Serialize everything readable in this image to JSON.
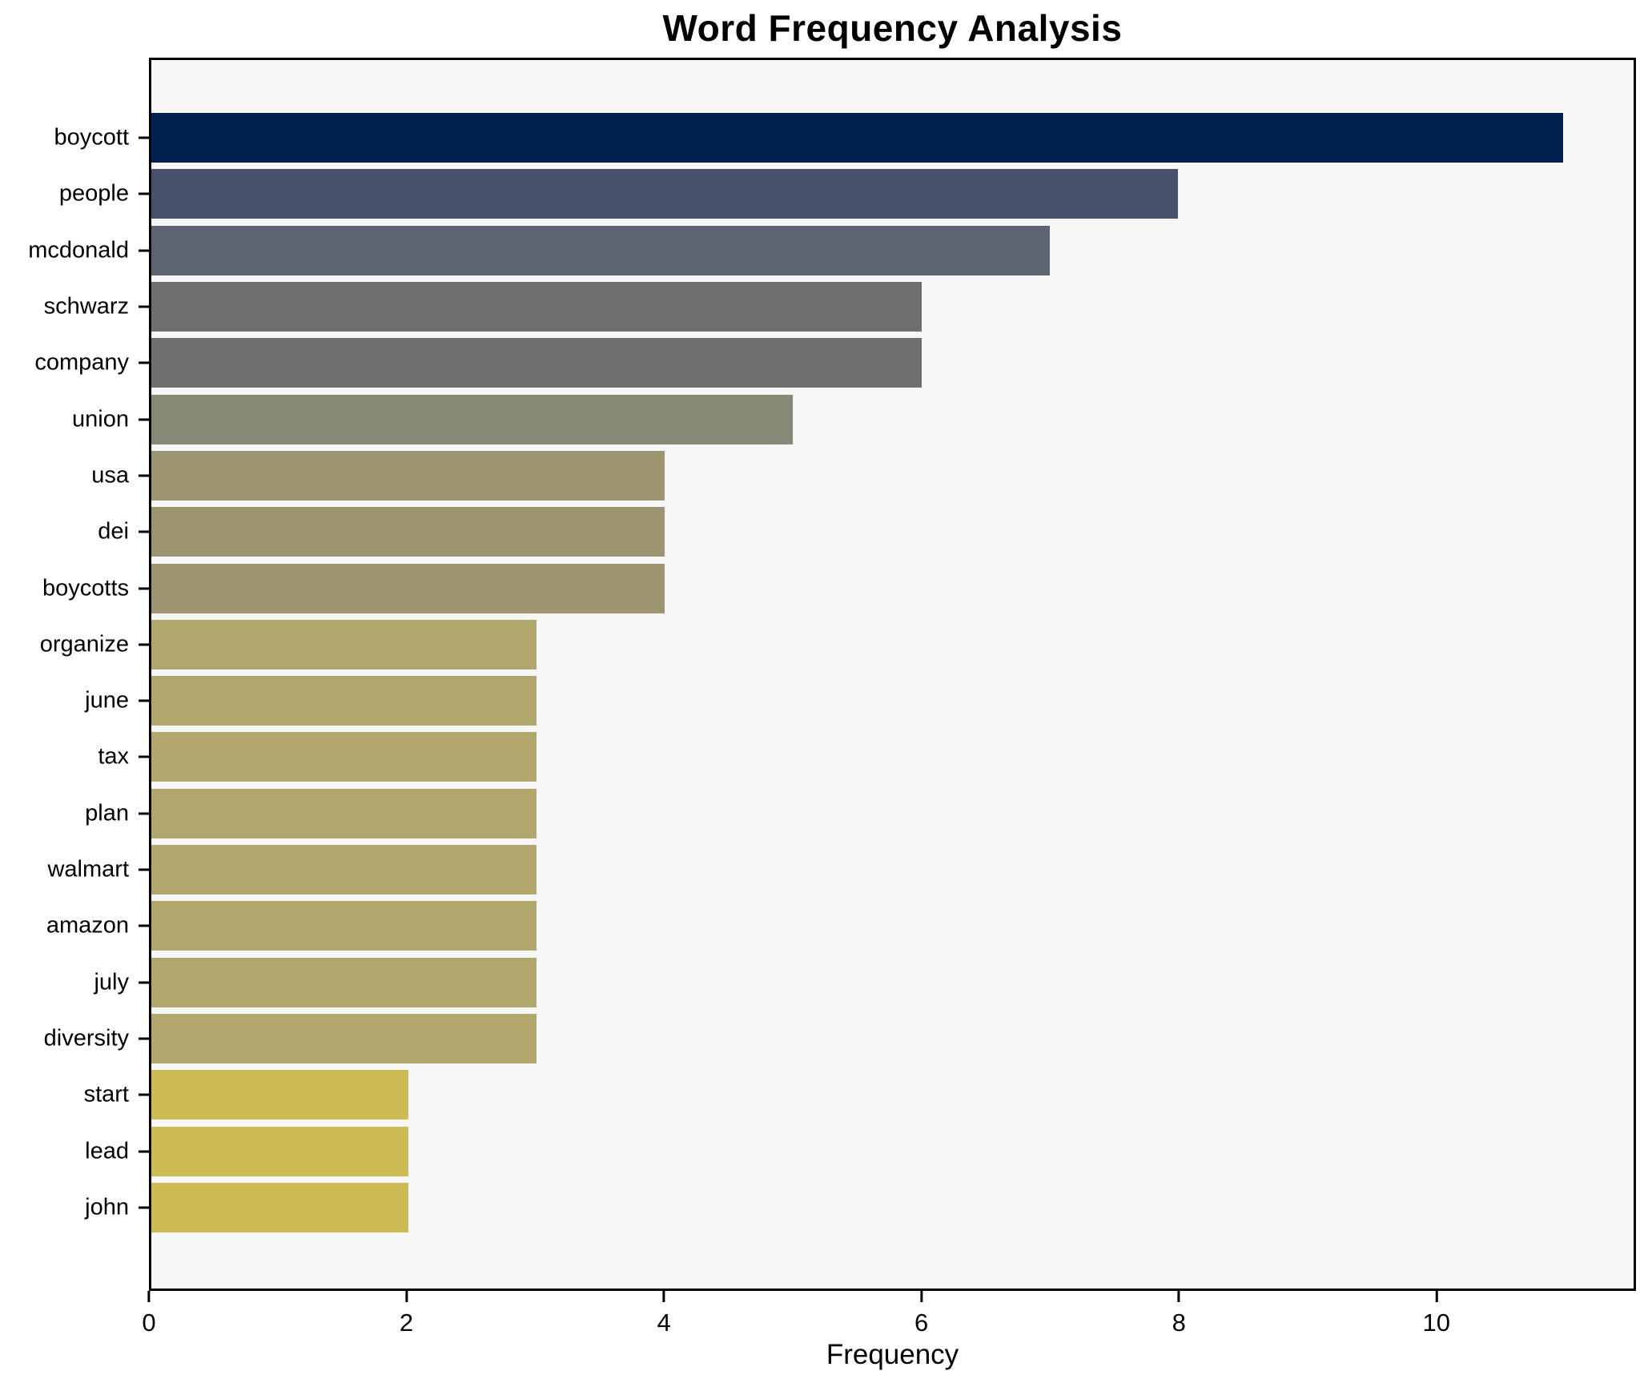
{
  "title": "Word Frequency Analysis",
  "xlabel": "Frequency",
  "colors": {
    "plot_background": "#f7f7f8",
    "figure_background": "#ffffff",
    "axis": "#000000"
  },
  "chart_data": {
    "type": "bar",
    "orientation": "horizontal",
    "title": "Word Frequency Analysis",
    "xlabel": "Frequency",
    "ylabel": "",
    "categories": [
      "boycott",
      "people",
      "mcdonald",
      "schwarz",
      "company",
      "union",
      "usa",
      "dei",
      "boycotts",
      "organize",
      "june",
      "tax",
      "plan",
      "walmart",
      "amazon",
      "july",
      "diversity",
      "start",
      "lead",
      "john"
    ],
    "values": [
      11,
      8,
      7,
      6,
      6,
      5,
      4,
      4,
      4,
      3,
      3,
      3,
      3,
      3,
      3,
      3,
      3,
      2,
      2,
      2
    ],
    "bar_colors": [
      "#03214e",
      "#48516b",
      "#5d6370",
      "#6e6f70",
      "#6e6f70",
      "#878876",
      "#9d9571",
      "#9d9571",
      "#9d9571",
      "#b1a76c",
      "#b1a76c",
      "#b1a76c",
      "#b1a76c",
      "#b1a76c",
      "#b1a76c",
      "#b1a76c",
      "#b1a76c",
      "#cdbb55",
      "#cdbb55",
      "#cdbb55"
    ],
    "x_ticks": [
      0,
      2,
      4,
      6,
      8,
      10
    ],
    "xlim": [
      0,
      11.55
    ],
    "grid": false,
    "legend": null
  }
}
